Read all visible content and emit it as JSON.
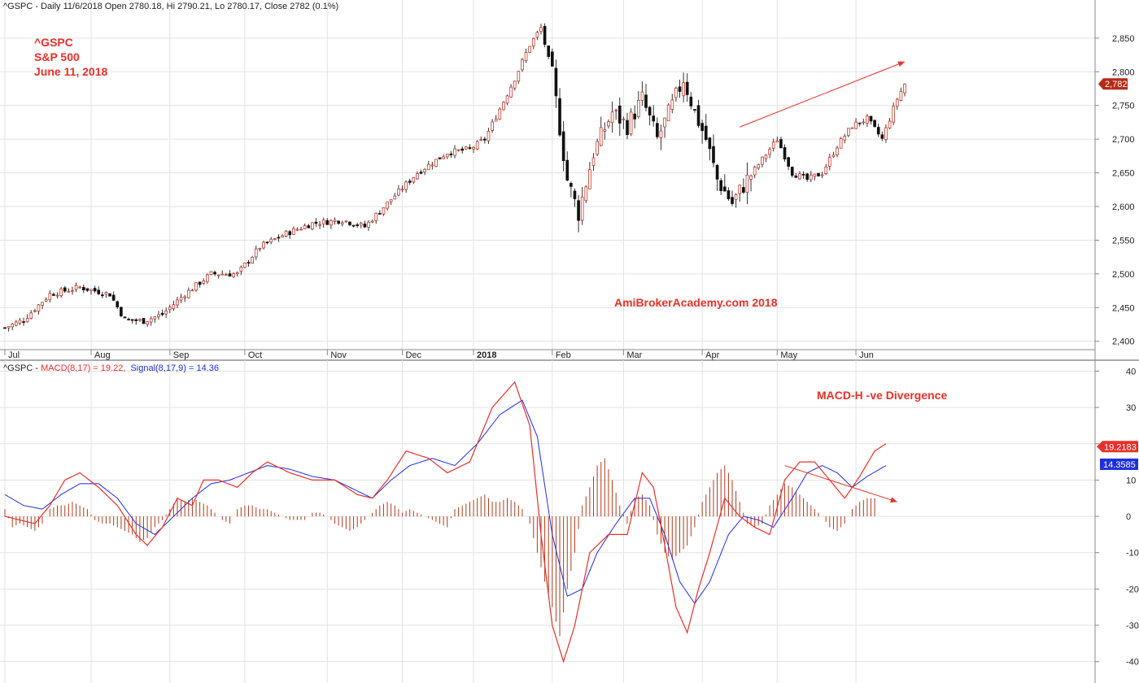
{
  "chart_data": [
    {
      "type": "candlestick",
      "header": "^GSPC - Daily 11/6/2018 Open 2780.18, Hi 2790.21, Lo 2780.17, Close 2782 (0.1%)",
      "annotation_lines": [
        "^GSPC",
        "S&P 500",
        "June 11, 2018"
      ],
      "watermark": "AmiBrokerAcademy.com  2018",
      "ylim": [
        2390,
        2880
      ],
      "y_ticks": [
        2400,
        2450,
        2500,
        2550,
        2600,
        2650,
        2700,
        2750,
        2800,
        2850
      ],
      "y_tick_labels": [
        "2,400",
        "2,450",
        "2,500",
        "2,550",
        "2,600",
        "2,650",
        "2,700",
        "2,750",
        "2,800",
        "2,850"
      ],
      "last_price_label": "2,782",
      "last_price": 2782,
      "x_labels": [
        "Jul",
        "Aug",
        "Sep",
        "Oct",
        "Nov",
        "Dec",
        "2018",
        "Feb",
        "Mar",
        "Apr",
        "May",
        "Jun"
      ],
      "x_label_index": [
        0,
        23,
        44,
        64,
        86,
        106,
        125,
        146,
        165,
        186,
        206,
        227
      ],
      "bar_count": 240,
      "close_path": [
        [
          0,
          2420
        ],
        [
          5,
          2432
        ],
        [
          12,
          2470
        ],
        [
          20,
          2480
        ],
        [
          28,
          2470
        ],
        [
          32,
          2432
        ],
        [
          37,
          2430
        ],
        [
          42,
          2440
        ],
        [
          48,
          2470
        ],
        [
          55,
          2500
        ],
        [
          62,
          2500
        ],
        [
          68,
          2540
        ],
        [
          75,
          2560
        ],
        [
          82,
          2575
        ],
        [
          90,
          2580
        ],
        [
          96,
          2570
        ],
        [
          102,
          2605
        ],
        [
          110,
          2650
        ],
        [
          118,
          2680
        ],
        [
          124,
          2685
        ],
        [
          128,
          2700
        ],
        [
          132,
          2745
        ],
        [
          136,
          2790
        ],
        [
          140,
          2840
        ],
        [
          143,
          2865
        ],
        [
          146,
          2795
        ],
        [
          150,
          2640
        ],
        [
          153,
          2590
        ],
        [
          157,
          2680
        ],
        [
          162,
          2740
        ],
        [
          166,
          2720
        ],
        [
          170,
          2760
        ],
        [
          174,
          2700
        ],
        [
          178,
          2750
        ],
        [
          181,
          2790
        ],
        [
          184,
          2740
        ],
        [
          187,
          2700
        ],
        [
          190,
          2640
        ],
        [
          194,
          2605
        ],
        [
          198,
          2640
        ],
        [
          202,
          2670
        ],
        [
          206,
          2700
        ],
        [
          210,
          2650
        ],
        [
          214,
          2640
        ],
        [
          218,
          2650
        ],
        [
          222,
          2690
        ],
        [
          226,
          2720
        ],
        [
          230,
          2730
        ],
        [
          234,
          2700
        ],
        [
          238,
          2760
        ],
        [
          240,
          2782
        ]
      ],
      "trend_arrow": {
        "from": [
          196,
          2718
        ],
        "to": [
          240,
          2815
        ]
      }
    },
    {
      "type": "macd",
      "header_prefix": "^GSPC - ",
      "macd_label": "MACD(8,17) = 19.22,",
      "signal_label": "Signal(8,17,9) = 14.36",
      "annotation": "MACD-H -ve Divergence",
      "ylim": [
        -45,
        41
      ],
      "y_ticks": [
        40,
        30,
        20,
        10,
        0,
        -10,
        -20,
        -30,
        -40
      ],
      "y_tick_labels": [
        "40",
        "30",
        "20",
        "10",
        "0",
        "-10",
        "-20",
        "-30",
        "-40"
      ],
      "macd_value_label": "19.2183",
      "macd_value": 19.2183,
      "signal_value_label": "14.3585",
      "signal_value": 14.3585,
      "macd_path": [
        [
          0,
          0
        ],
        [
          4,
          -1
        ],
        [
          8,
          -2
        ],
        [
          12,
          3
        ],
        [
          16,
          10
        ],
        [
          20,
          12
        ],
        [
          25,
          8
        ],
        [
          30,
          3
        ],
        [
          35,
          -5
        ],
        [
          38,
          -8
        ],
        [
          42,
          -3
        ],
        [
          46,
          5
        ],
        [
          50,
          3
        ],
        [
          53,
          10
        ],
        [
          57,
          10
        ],
        [
          62,
          8
        ],
        [
          66,
          12
        ],
        [
          70,
          15
        ],
        [
          76,
          12
        ],
        [
          82,
          10
        ],
        [
          88,
          10
        ],
        [
          94,
          6
        ],
        [
          98,
          5
        ],
        [
          102,
          10
        ],
        [
          107,
          18
        ],
        [
          113,
          16
        ],
        [
          118,
          12
        ],
        [
          124,
          15
        ],
        [
          130,
          30
        ],
        [
          136,
          37
        ],
        [
          140,
          25
        ],
        [
          143,
          -5
        ],
        [
          146,
          -30
        ],
        [
          149,
          -40
        ],
        [
          152,
          -30
        ],
        [
          156,
          -10
        ],
        [
          161,
          -5
        ],
        [
          166,
          -5
        ],
        [
          170,
          12
        ],
        [
          173,
          8
        ],
        [
          176,
          -8
        ],
        [
          179,
          -25
        ],
        [
          182,
          -32
        ],
        [
          185,
          -20
        ],
        [
          188,
          -10
        ],
        [
          192,
          5
        ],
        [
          196,
          0
        ],
        [
          200,
          -3
        ],
        [
          204,
          -5
        ],
        [
          208,
          10
        ],
        [
          212,
          15
        ],
        [
          216,
          15
        ],
        [
          220,
          10
        ],
        [
          224,
          5
        ],
        [
          228,
          11
        ],
        [
          232,
          18
        ],
        [
          235,
          20
        ]
      ],
      "signal_path": [
        [
          0,
          6
        ],
        [
          5,
          3
        ],
        [
          10,
          2
        ],
        [
          15,
          6
        ],
        [
          20,
          9
        ],
        [
          25,
          9
        ],
        [
          30,
          5
        ],
        [
          35,
          -2
        ],
        [
          40,
          -5
        ],
        [
          45,
          0
        ],
        [
          50,
          5
        ],
        [
          55,
          9
        ],
        [
          60,
          10
        ],
        [
          65,
          12
        ],
        [
          70,
          14
        ],
        [
          76,
          13
        ],
        [
          82,
          11
        ],
        [
          88,
          10
        ],
        [
          94,
          7
        ],
        [
          98,
          5
        ],
        [
          103,
          10
        ],
        [
          108,
          14
        ],
        [
          114,
          16
        ],
        [
          120,
          14
        ],
        [
          126,
          20
        ],
        [
          132,
          28
        ],
        [
          138,
          32
        ],
        [
          142,
          22
        ],
        [
          146,
          -5
        ],
        [
          150,
          -22
        ],
        [
          154,
          -20
        ],
        [
          158,
          -10
        ],
        [
          163,
          -2
        ],
        [
          168,
          5
        ],
        [
          172,
          5
        ],
        [
          176,
          -5
        ],
        [
          180,
          -18
        ],
        [
          184,
          -24
        ],
        [
          188,
          -18
        ],
        [
          193,
          -5
        ],
        [
          197,
          0
        ],
        [
          201,
          -1
        ],
        [
          205,
          -3
        ],
        [
          210,
          5
        ],
        [
          214,
          12
        ],
        [
          218,
          14
        ],
        [
          222,
          12
        ],
        [
          226,
          8
        ],
        [
          230,
          11
        ],
        [
          235,
          14
        ]
      ],
      "histogram": [
        [
          0,
          2
        ],
        [
          2,
          -3
        ],
        [
          4,
          -2
        ],
        [
          6,
          -3
        ],
        [
          8,
          -4
        ],
        [
          10,
          -2
        ],
        [
          12,
          2
        ],
        [
          14,
          3
        ],
        [
          16,
          3
        ],
        [
          18,
          4
        ],
        [
          20,
          3
        ],
        [
          22,
          2
        ],
        [
          24,
          -1
        ],
        [
          26,
          -2
        ],
        [
          28,
          -2
        ],
        [
          30,
          -3
        ],
        [
          32,
          -4
        ],
        [
          34,
          -5
        ],
        [
          36,
          -7
        ],
        [
          38,
          -6
        ],
        [
          40,
          -3
        ],
        [
          42,
          -1
        ],
        [
          44,
          2
        ],
        [
          46,
          5
        ],
        [
          48,
          4
        ],
        [
          50,
          5
        ],
        [
          52,
          4
        ],
        [
          54,
          3
        ],
        [
          56,
          1
        ],
        [
          58,
          -1
        ],
        [
          60,
          -2
        ],
        [
          62,
          2
        ],
        [
          64,
          3
        ],
        [
          66,
          3
        ],
        [
          68,
          2
        ],
        [
          70,
          2
        ],
        [
          72,
          1
        ],
        [
          74,
          0
        ],
        [
          76,
          -1
        ],
        [
          78,
          -1
        ],
        [
          80,
          -1
        ],
        [
          82,
          1
        ],
        [
          84,
          1
        ],
        [
          86,
          0
        ],
        [
          88,
          -2
        ],
        [
          90,
          -3
        ],
        [
          92,
          -4
        ],
        [
          94,
          -3
        ],
        [
          96,
          -1
        ],
        [
          98,
          1
        ],
        [
          100,
          3
        ],
        [
          102,
          4
        ],
        [
          104,
          3
        ],
        [
          106,
          1
        ],
        [
          108,
          2
        ],
        [
          110,
          1
        ],
        [
          112,
          0
        ],
        [
          114,
          -1
        ],
        [
          116,
          -2
        ],
        [
          118,
          -3
        ],
        [
          120,
          2
        ],
        [
          122,
          3
        ],
        [
          124,
          4
        ],
        [
          126,
          5
        ],
        [
          128,
          6
        ],
        [
          130,
          4
        ],
        [
          132,
          4
        ],
        [
          134,
          5
        ],
        [
          136,
          4
        ],
        [
          138,
          2
        ],
        [
          140,
          -2
        ],
        [
          142,
          -10
        ],
        [
          144,
          -18
        ],
        [
          146,
          -25
        ],
        [
          148,
          -33
        ],
        [
          150,
          -20
        ],
        [
          152,
          -10
        ],
        [
          154,
          3
        ],
        [
          156,
          8
        ],
        [
          158,
          14
        ],
        [
          160,
          16
        ],
        [
          162,
          10
        ],
        [
          164,
          3
        ],
        [
          166,
          -2
        ],
        [
          168,
          5
        ],
        [
          170,
          6
        ],
        [
          172,
          3
        ],
        [
          174,
          -5
        ],
        [
          176,
          -10
        ],
        [
          178,
          -12
        ],
        [
          180,
          -10
        ],
        [
          182,
          -8
        ],
        [
          184,
          -3
        ],
        [
          186,
          4
        ],
        [
          188,
          8
        ],
        [
          190,
          12
        ],
        [
          192,
          14
        ],
        [
          194,
          10
        ],
        [
          196,
          4
        ],
        [
          198,
          -2
        ],
        [
          200,
          -3
        ],
        [
          202,
          -2
        ],
        [
          204,
          3
        ],
        [
          206,
          6
        ],
        [
          208,
          9
        ],
        [
          210,
          8
        ],
        [
          212,
          6
        ],
        [
          214,
          4
        ],
        [
          216,
          2
        ],
        [
          218,
          0
        ],
        [
          220,
          -3
        ],
        [
          222,
          -4
        ],
        [
          224,
          -2
        ],
        [
          226,
          2
        ],
        [
          228,
          4
        ],
        [
          230,
          5
        ],
        [
          232,
          5
        ]
      ],
      "trend_arrow": {
        "from": [
          208,
          14
        ],
        "to": [
          238,
          4
        ]
      }
    }
  ]
}
